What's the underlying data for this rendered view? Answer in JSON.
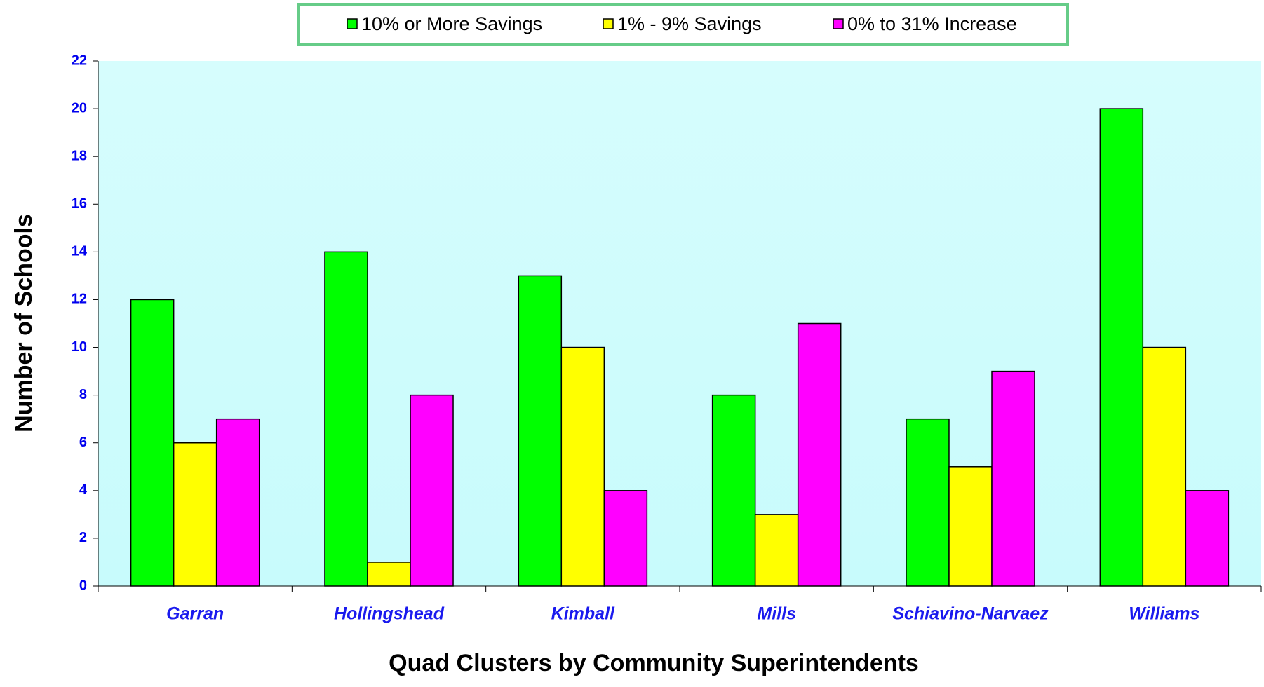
{
  "chart_data": {
    "type": "bar",
    "x_label": "Quad Clusters by Community Superintendents",
    "y_label": "Number  of  Schools",
    "categories": [
      "Garran",
      "Hollingshead",
      "Kimball",
      "Mills",
      "Schiavino-Narvaez",
      "Williams"
    ],
    "series": [
      {
        "name": "10% or More Savings",
        "color": "#00ff00",
        "values": [
          12,
          14,
          13,
          8,
          7,
          20
        ]
      },
      {
        "name": "1% - 9% Savings",
        "color": "#ffff00",
        "values": [
          6,
          1,
          10,
          3,
          5,
          10
        ]
      },
      {
        "name": "0% to 31% Increase",
        "color": "#ff00ff",
        "values": [
          7,
          8,
          4,
          11,
          9,
          4
        ]
      }
    ],
    "ylim": [
      0,
      22
    ],
    "yticks": [
      0,
      2,
      4,
      6,
      8,
      10,
      12,
      14,
      16,
      18,
      20,
      22
    ],
    "legend": "top"
  }
}
